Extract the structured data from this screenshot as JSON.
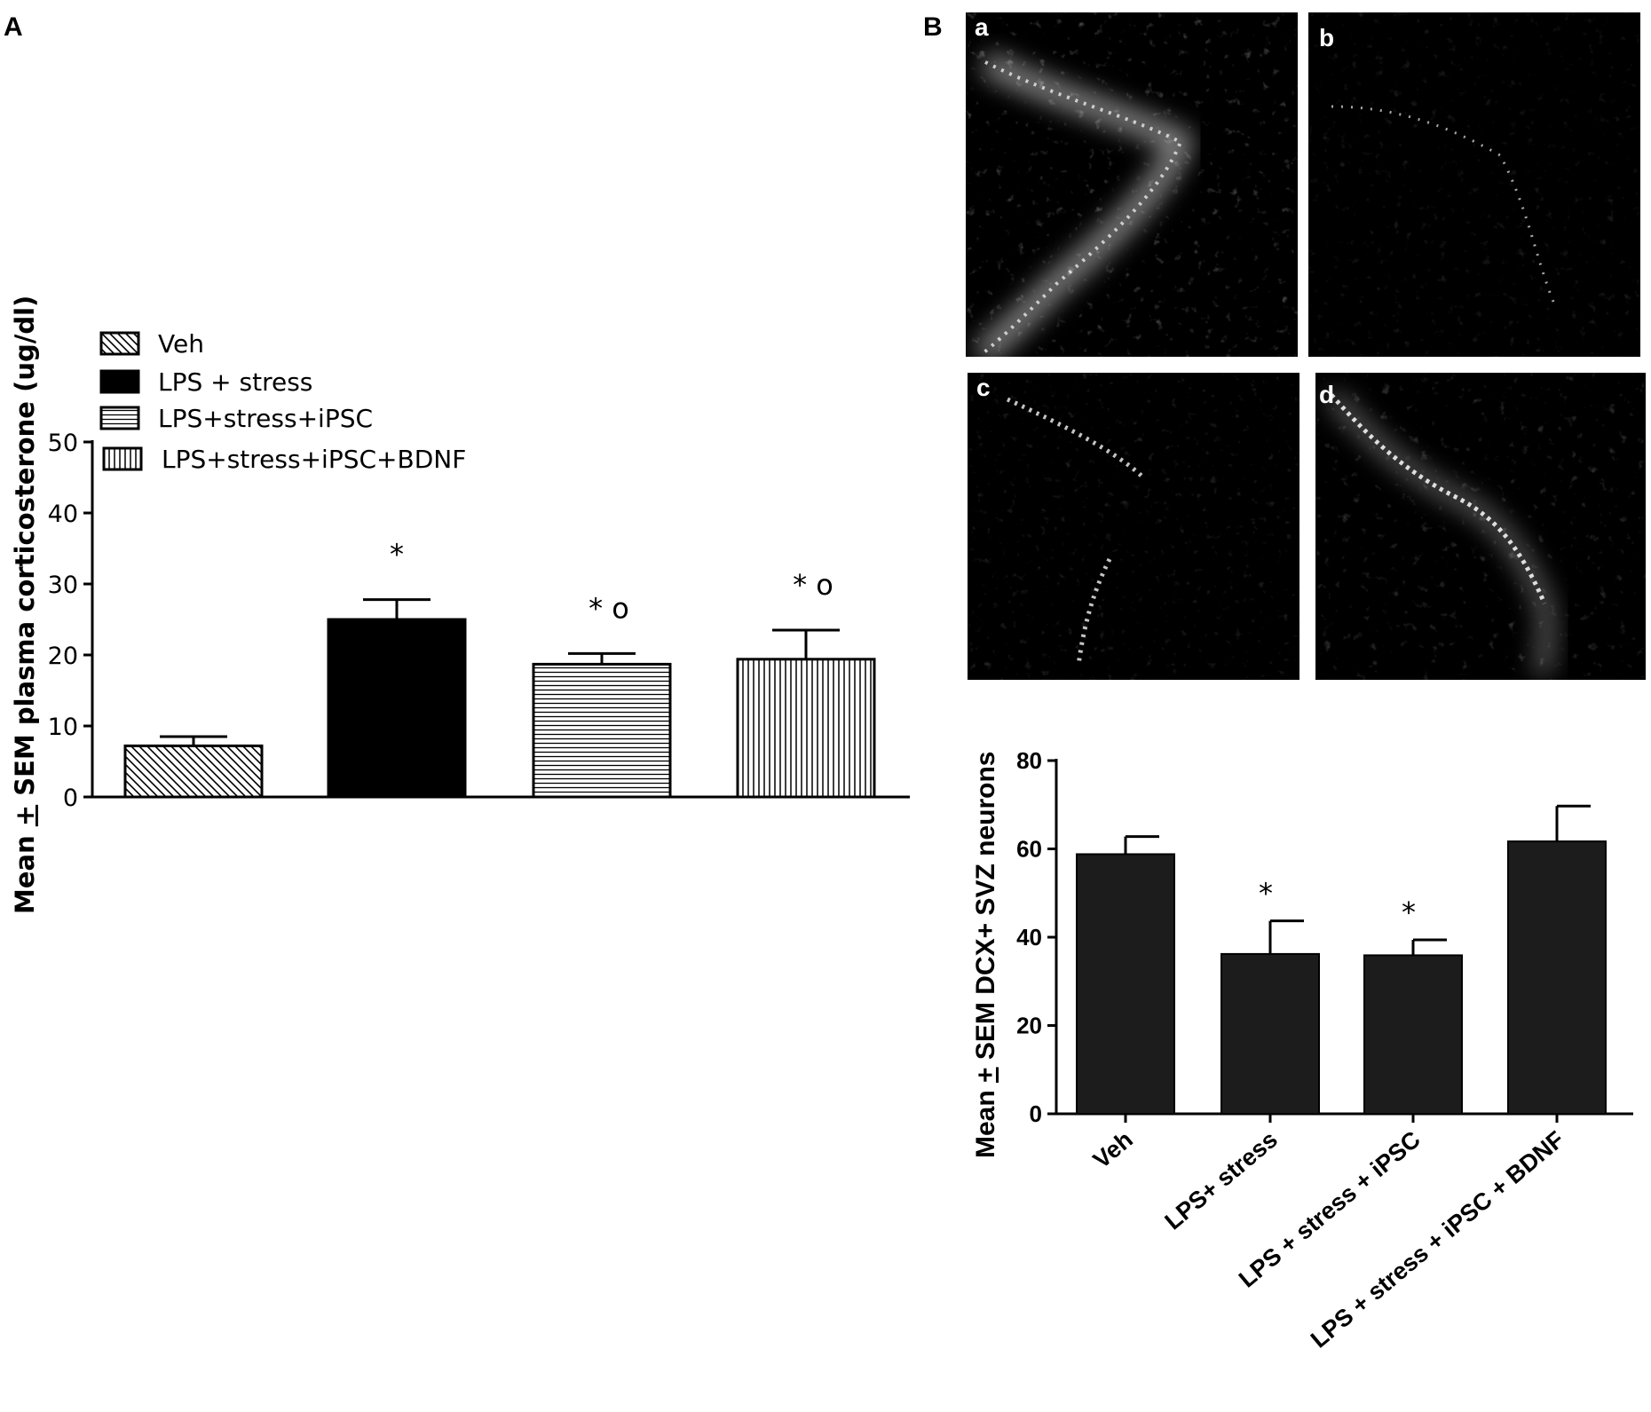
{
  "panels": {
    "A": "A",
    "B": "B",
    "micrographs": [
      {
        "label": "a"
      },
      {
        "label": "b"
      },
      {
        "label": "c"
      },
      {
        "label": "d"
      }
    ]
  },
  "chart_data": [
    {
      "type": "bar",
      "panel": "A",
      "ylabel": "Mean ± SEM plasma corticosterone (ug/dl)",
      "ylabel_pre": "Mean ",
      "ylabel_pm": "+",
      "ylabel_post": " SEM plasma corticosterone (ug/dl)",
      "ylim": [
        0,
        50
      ],
      "yticks": [
        0,
        10,
        20,
        30,
        40,
        50
      ],
      "legend_position": "top-left",
      "series": [
        {
          "name": "Veh",
          "value": 7.2,
          "error": 1.3,
          "fill": "diag",
          "annotation": ""
        },
        {
          "name": "LPS + stress",
          "value": 25.0,
          "error": 2.8,
          "fill": "solid",
          "annotation": "*"
        },
        {
          "name": "LPS+stress+iPSC",
          "value": 18.7,
          "error": 1.5,
          "fill": "hlines",
          "annotation": "* o"
        },
        {
          "name": "LPS+stress+iPSC+BDNF",
          "value": 19.4,
          "error": 4.1,
          "fill": "vlines",
          "annotation": "* o"
        }
      ]
    },
    {
      "type": "bar",
      "panel": "B",
      "ylabel": "Mean ± SEM DCX+ SVZ neurons",
      "ylabel_pre": "Mean ",
      "ylabel_pm": "+",
      "ylabel_post": " SEM DCX+ SVZ neurons",
      "ylim": [
        0,
        80
      ],
      "yticks": [
        0,
        20,
        40,
        60,
        80
      ],
      "categories": [
        "Veh",
        "LPS+ stress",
        "LPS + stress + iPSC",
        "LPS + stress + iPSC + BDNF"
      ],
      "values": [
        58.8,
        36.2,
        35.9,
        61.7
      ],
      "errors": [
        4.0,
        7.5,
        3.5,
        8.0
      ],
      "annotations": [
        "",
        "*",
        "*",
        ""
      ],
      "bar_color": "#1c1c1c"
    }
  ]
}
